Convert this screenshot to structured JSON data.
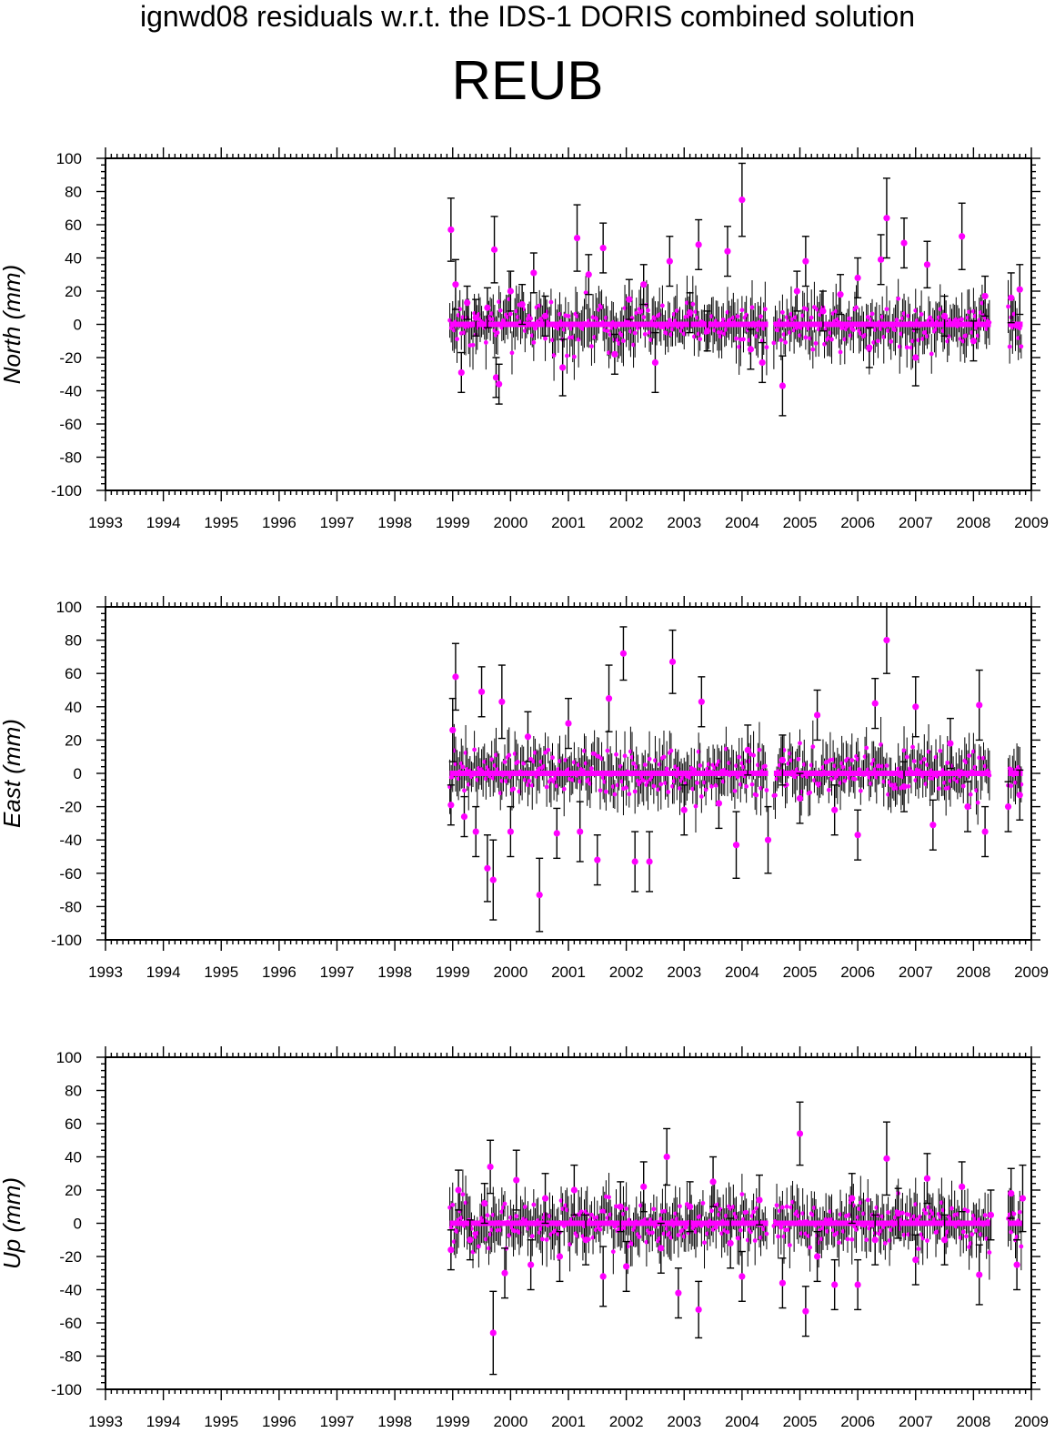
{
  "page": {
    "title": "ignwd08 residuals w.r.t. the IDS-1 DORIS combined solution",
    "station": "REUB"
  },
  "colors": {
    "points": "#ff00ff",
    "errorbars": "#000000",
    "axes": "#000000"
  },
  "chart_data": [
    {
      "type": "scatter",
      "ylabel": "North (mm)",
      "xlim": [
        1993,
        2009
      ],
      "ylim": [
        -100,
        100
      ],
      "xticks": [
        1993,
        1994,
        1995,
        1996,
        1997,
        1998,
        1999,
        2000,
        2001,
        2002,
        2003,
        2004,
        2005,
        2006,
        2007,
        2008,
        2009
      ],
      "yticks": [
        -100,
        -80,
        -60,
        -40,
        -20,
        0,
        20,
        40,
        60,
        80,
        100
      ],
      "series": [
        {
          "points": [
            {
              "x": 1998.97,
              "y": 57,
              "err": 19
            },
            {
              "x": 1999.05,
              "y": 24,
              "err": 15
            },
            {
              "x": 1999.15,
              "y": -29,
              "err": 12
            },
            {
              "x": 1999.25,
              "y": 13,
              "err": 10
            },
            {
              "x": 1999.4,
              "y": 4,
              "err": 11
            },
            {
              "x": 1999.6,
              "y": 10,
              "err": 12
            },
            {
              "x": 1999.72,
              "y": 45,
              "err": 20
            },
            {
              "x": 1999.75,
              "y": -32,
              "err": 12
            },
            {
              "x": 1999.8,
              "y": -36,
              "err": 12
            },
            {
              "x": 2000.0,
              "y": 20,
              "err": 12
            },
            {
              "x": 2000.2,
              "y": 12,
              "err": 12
            },
            {
              "x": 2000.4,
              "y": 31,
              "err": 12
            },
            {
              "x": 2000.6,
              "y": 5,
              "err": 12
            },
            {
              "x": 2000.9,
              "y": -26,
              "err": 17
            },
            {
              "x": 2001.15,
              "y": 52,
              "err": 20
            },
            {
              "x": 2001.35,
              "y": 30,
              "err": 12
            },
            {
              "x": 2001.6,
              "y": 46,
              "err": 15
            },
            {
              "x": 2001.8,
              "y": -18,
              "err": 12
            },
            {
              "x": 2002.05,
              "y": 15,
              "err": 12
            },
            {
              "x": 2002.3,
              "y": 24,
              "err": 12
            },
            {
              "x": 2002.5,
              "y": -23,
              "err": 18
            },
            {
              "x": 2002.75,
              "y": 38,
              "err": 15
            },
            {
              "x": 2003.1,
              "y": 7,
              "err": 12
            },
            {
              "x": 2003.25,
              "y": 48,
              "err": 15
            },
            {
              "x": 2003.4,
              "y": -4,
              "err": 12
            },
            {
              "x": 2003.75,
              "y": 44,
              "err": 15
            },
            {
              "x": 2004.0,
              "y": 75,
              "err": 22
            },
            {
              "x": 2004.15,
              "y": -15,
              "err": 12
            },
            {
              "x": 2004.35,
              "y": -23,
              "err": 12
            },
            {
              "x": 2004.7,
              "y": -37,
              "err": 18
            },
            {
              "x": 2004.95,
              "y": 20,
              "err": 12
            },
            {
              "x": 2005.1,
              "y": 38,
              "err": 15
            },
            {
              "x": 2005.4,
              "y": 8,
              "err": 12
            },
            {
              "x": 2005.7,
              "y": 18,
              "err": 12
            },
            {
              "x": 2006.0,
              "y": 28,
              "err": 12
            },
            {
              "x": 2006.2,
              "y": -14,
              "err": 12
            },
            {
              "x": 2006.4,
              "y": 39,
              "err": 15
            },
            {
              "x": 2006.5,
              "y": 64,
              "err": 24
            },
            {
              "x": 2006.8,
              "y": 49,
              "err": 15
            },
            {
              "x": 2007.0,
              "y": -20,
              "err": 17
            },
            {
              "x": 2007.2,
              "y": 36,
              "err": 14
            },
            {
              "x": 2007.5,
              "y": 5,
              "err": 12
            },
            {
              "x": 2007.8,
              "y": 53,
              "err": 20
            },
            {
              "x": 2008.0,
              "y": -10,
              "err": 12
            },
            {
              "x": 2008.2,
              "y": 17,
              "err": 12
            },
            {
              "x": 2008.65,
              "y": 16,
              "err": 15
            },
            {
              "x": 2008.8,
              "y": 21,
              "err": 15
            }
          ]
        }
      ]
    },
    {
      "type": "scatter",
      "ylabel": "East (mm)",
      "xlim": [
        1993,
        2009
      ],
      "ylim": [
        -100,
        100
      ],
      "xticks": [
        1993,
        1994,
        1995,
        1996,
        1997,
        1998,
        1999,
        2000,
        2001,
        2002,
        2003,
        2004,
        2005,
        2006,
        2007,
        2008,
        2009
      ],
      "yticks": [
        -100,
        -80,
        -60,
        -40,
        -20,
        0,
        20,
        40,
        60,
        80,
        100
      ],
      "series": [
        {
          "points": [
            {
              "x": 1998.97,
              "y": -19,
              "err": 12
            },
            {
              "x": 1999.0,
              "y": 26,
              "err": 19
            },
            {
              "x": 1999.05,
              "y": 58,
              "err": 20
            },
            {
              "x": 1999.2,
              "y": -26,
              "err": 12
            },
            {
              "x": 1999.4,
              "y": -35,
              "err": 15
            },
            {
              "x": 1999.5,
              "y": 49,
              "err": 15
            },
            {
              "x": 1999.6,
              "y": -57,
              "err": 20
            },
            {
              "x": 1999.7,
              "y": -64,
              "err": 24
            },
            {
              "x": 1999.85,
              "y": 43,
              "err": 22
            },
            {
              "x": 2000.0,
              "y": -35,
              "err": 15
            },
            {
              "x": 2000.3,
              "y": 22,
              "err": 15
            },
            {
              "x": 2000.5,
              "y": -73,
              "err": 22
            },
            {
              "x": 2000.8,
              "y": -36,
              "err": 15
            },
            {
              "x": 2001.0,
              "y": 30,
              "err": 15
            },
            {
              "x": 2001.2,
              "y": -35,
              "err": 18
            },
            {
              "x": 2001.5,
              "y": -52,
              "err": 15
            },
            {
              "x": 2001.7,
              "y": 45,
              "err": 20
            },
            {
              "x": 2001.95,
              "y": 72,
              "err": 16
            },
            {
              "x": 2002.15,
              "y": -53,
              "err": 18
            },
            {
              "x": 2002.4,
              "y": -53,
              "err": 18
            },
            {
              "x": 2002.8,
              "y": 67,
              "err": 19
            },
            {
              "x": 2003.0,
              "y": -22,
              "err": 15
            },
            {
              "x": 2003.3,
              "y": 43,
              "err": 15
            },
            {
              "x": 2003.6,
              "y": -18,
              "err": 15
            },
            {
              "x": 2003.9,
              "y": -43,
              "err": 20
            },
            {
              "x": 2004.1,
              "y": 14,
              "err": 15
            },
            {
              "x": 2004.45,
              "y": -40,
              "err": 20
            },
            {
              "x": 2004.7,
              "y": 8,
              "err": 15
            },
            {
              "x": 2005.0,
              "y": -15,
              "err": 15
            },
            {
              "x": 2005.3,
              "y": 35,
              "err": 15
            },
            {
              "x": 2005.6,
              "y": -22,
              "err": 15
            },
            {
              "x": 2006.0,
              "y": -37,
              "err": 15
            },
            {
              "x": 2006.3,
              "y": 42,
              "err": 15
            },
            {
              "x": 2006.5,
              "y": 80,
              "err": 20
            },
            {
              "x": 2006.8,
              "y": -8,
              "err": 15
            },
            {
              "x": 2007.0,
              "y": 40,
              "err": 18
            },
            {
              "x": 2007.3,
              "y": -31,
              "err": 15
            },
            {
              "x": 2007.6,
              "y": 18,
              "err": 15
            },
            {
              "x": 2007.9,
              "y": -20,
              "err": 15
            },
            {
              "x": 2008.1,
              "y": 41,
              "err": 21
            },
            {
              "x": 2008.2,
              "y": -35,
              "err": 15
            },
            {
              "x": 2008.6,
              "y": -20,
              "err": 15
            },
            {
              "x": 2008.8,
              "y": -13,
              "err": 15
            }
          ]
        }
      ]
    },
    {
      "type": "scatter",
      "ylabel": "Up (mm)",
      "xlim": [
        1993,
        2009
      ],
      "ylim": [
        -100,
        100
      ],
      "xticks": [
        1993,
        1994,
        1995,
        1996,
        1997,
        1998,
        1999,
        2000,
        2001,
        2002,
        2003,
        2004,
        2005,
        2006,
        2007,
        2008,
        2009
      ],
      "yticks": [
        -100,
        -80,
        -60,
        -40,
        -20,
        0,
        20,
        40,
        60,
        80,
        100
      ],
      "series": [
        {
          "points": [
            {
              "x": 1998.97,
              "y": -16,
              "err": 12
            },
            {
              "x": 1999.1,
              "y": 20,
              "err": 12
            },
            {
              "x": 1999.3,
              "y": -10,
              "err": 12
            },
            {
              "x": 1999.55,
              "y": 12,
              "err": 12
            },
            {
              "x": 1999.65,
              "y": 34,
              "err": 16
            },
            {
              "x": 1999.7,
              "y": -66,
              "err": 25
            },
            {
              "x": 1999.9,
              "y": -30,
              "err": 15
            },
            {
              "x": 2000.1,
              "y": 26,
              "err": 18
            },
            {
              "x": 2000.35,
              "y": -25,
              "err": 15
            },
            {
              "x": 2000.6,
              "y": 15,
              "err": 15
            },
            {
              "x": 2000.85,
              "y": -20,
              "err": 15
            },
            {
              "x": 2001.1,
              "y": 20,
              "err": 15
            },
            {
              "x": 2001.3,
              "y": -10,
              "err": 15
            },
            {
              "x": 2001.6,
              "y": -32,
              "err": 18
            },
            {
              "x": 2001.9,
              "y": 10,
              "err": 15
            },
            {
              "x": 2002.0,
              "y": -26,
              "err": 15
            },
            {
              "x": 2002.3,
              "y": 22,
              "err": 15
            },
            {
              "x": 2002.6,
              "y": -15,
              "err": 15
            },
            {
              "x": 2002.7,
              "y": 40,
              "err": 17
            },
            {
              "x": 2002.9,
              "y": -42,
              "err": 15
            },
            {
              "x": 2003.1,
              "y": 10,
              "err": 15
            },
            {
              "x": 2003.25,
              "y": -52,
              "err": 17
            },
            {
              "x": 2003.5,
              "y": 25,
              "err": 15
            },
            {
              "x": 2003.8,
              "y": -12,
              "err": 15
            },
            {
              "x": 2004.0,
              "y": -32,
              "err": 15
            },
            {
              "x": 2004.3,
              "y": 14,
              "err": 15
            },
            {
              "x": 2004.7,
              "y": -36,
              "err": 15
            },
            {
              "x": 2005.0,
              "y": 54,
              "err": 19
            },
            {
              "x": 2005.1,
              "y": -53,
              "err": 15
            },
            {
              "x": 2005.3,
              "y": -20,
              "err": 15
            },
            {
              "x": 2005.6,
              "y": -37,
              "err": 15
            },
            {
              "x": 2005.9,
              "y": 15,
              "err": 15
            },
            {
              "x": 2006.0,
              "y": -37,
              "err": 15
            },
            {
              "x": 2006.3,
              "y": -10,
              "err": 15
            },
            {
              "x": 2006.5,
              "y": 39,
              "err": 22
            },
            {
              "x": 2006.7,
              "y": 6,
              "err": 15
            },
            {
              "x": 2007.0,
              "y": -22,
              "err": 15
            },
            {
              "x": 2007.2,
              "y": 27,
              "err": 15
            },
            {
              "x": 2007.5,
              "y": -10,
              "err": 15
            },
            {
              "x": 2007.8,
              "y": 22,
              "err": 15
            },
            {
              "x": 2008.1,
              "y": -31,
              "err": 18
            },
            {
              "x": 2008.3,
              "y": 5,
              "err": 15
            },
            {
              "x": 2008.65,
              "y": 18,
              "err": 15
            },
            {
              "x": 2008.75,
              "y": -25,
              "err": 15
            },
            {
              "x": 2008.85,
              "y": 15,
              "err": 20
            }
          ]
        }
      ]
    }
  ]
}
